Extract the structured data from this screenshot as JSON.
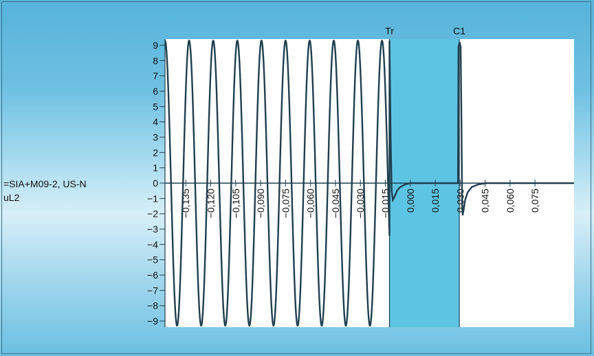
{
  "chart_data": {
    "type": "line",
    "title": "",
    "signal_label": [
      "=SIA+M09-2, US-N",
      "uL2"
    ],
    "cursors": [
      {
        "label": "Tr",
        "x": -0.0125
      },
      {
        "label": "C1",
        "x": 0.0295
      }
    ],
    "shaded_range": [
      -0.0125,
      0.0295
    ],
    "shade_color": "#5ec4e4",
    "line_color": "#1e3f4e",
    "xlim": [
      -0.1475,
      0.0985
    ],
    "ylim": [
      -9.4,
      9.4
    ],
    "x_ticks": [
      -0.135,
      -0.12,
      -0.105,
      -0.09,
      -0.075,
      -0.06,
      -0.045,
      -0.03,
      -0.015,
      0.0,
      0.015,
      0.03,
      0.045,
      0.06,
      0.075
    ],
    "x_tick_labels": [
      "−0,135",
      "−0,120",
      "−0,105",
      "−0,090",
      "−0,075",
      "−0,060",
      "−0,045",
      "−0,030",
      "−0,015",
      "0,000",
      "0,015",
      "0,030",
      "0,045",
      "0,060",
      "0,075"
    ],
    "y_ticks": [
      9,
      8,
      7,
      6,
      5,
      4,
      3,
      2,
      1,
      0,
      -1,
      -2,
      -3,
      -4,
      -5,
      -6,
      -7,
      -8,
      -9
    ],
    "y_tick_labels": [
      "9",
      "8",
      "7",
      "6",
      "5",
      "4",
      "3",
      "2",
      "1",
      "0",
      "−1",
      "−2",
      "−3",
      "−4",
      "−5",
      "−6",
      "−7",
      "−8",
      "−9"
    ],
    "series": [
      {
        "segments": [
          {
            "kind": "sine",
            "x_start": -0.1475,
            "x_end": -0.0125,
            "amplitude": 9.3,
            "period": 0.0145,
            "peak_at": -0.1475
          },
          {
            "kind": "decay",
            "points": [
              [
                -0.0125,
                9.3
              ],
              [
                -0.0118,
                3.0
              ],
              [
                -0.0112,
                -0.5
              ],
              [
                -0.0105,
                -1.1
              ],
              [
                -0.0095,
                -0.9
              ],
              [
                -0.008,
                -0.5
              ],
              [
                -0.006,
                -0.25
              ],
              [
                -0.003,
                -0.08
              ],
              [
                0.0,
                0.0
              ],
              [
                0.005,
                0.0
              ],
              [
                0.0287,
                0.0
              ]
            ]
          },
          {
            "kind": "decay",
            "points": [
              [
                0.0287,
                0.0
              ],
              [
                0.029,
                8.9
              ],
              [
                0.0297,
                9.2
              ],
              [
                0.0303,
                8.9
              ],
              [
                0.0308,
                4.0
              ],
              [
                0.0312,
                -1.5
              ],
              [
                0.0315,
                -2.1
              ],
              [
                0.032,
                -1.8
              ],
              [
                0.033,
                -1.1
              ],
              [
                0.0345,
                -0.6
              ],
              [
                0.037,
                -0.25
              ],
              [
                0.041,
                -0.08
              ],
              [
                0.046,
                0.0
              ],
              [
                0.0985,
                0.0
              ]
            ]
          }
        ]
      }
    ]
  }
}
